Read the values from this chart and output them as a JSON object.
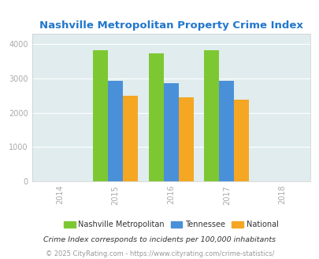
{
  "title": "Nashville Metropolitan Property Crime Index",
  "title_color": "#2277cc",
  "years": [
    2015,
    2016,
    2017
  ],
  "nashville": [
    3820,
    3720,
    3820
  ],
  "tennessee": [
    2930,
    2855,
    2930
  ],
  "national": [
    2500,
    2450,
    2375
  ],
  "colors": {
    "nashville": "#7dc832",
    "tennessee": "#4a90d9",
    "national": "#f5a623"
  },
  "xlim": [
    2013.5,
    2018.5
  ],
  "ylim": [
    0,
    4300
  ],
  "yticks": [
    0,
    1000,
    2000,
    3000,
    4000
  ],
  "xticks": [
    2014,
    2015,
    2016,
    2017,
    2018
  ],
  "plot_bg_color": "#e0ecee",
  "bar_width": 0.27,
  "legend_labels": [
    "Nashville Metropolitan",
    "Tennessee",
    "National"
  ],
  "footnote1": "Crime Index corresponds to incidents per 100,000 inhabitants",
  "footnote2": "© 2025 CityRating.com - https://www.cityrating.com/crime-statistics/",
  "footnote1_color": "#333333",
  "footnote2_color": "#999999",
  "tick_color": "#aaaaaa",
  "grid_color": "#ffffff",
  "spine_color": "#cccccc"
}
